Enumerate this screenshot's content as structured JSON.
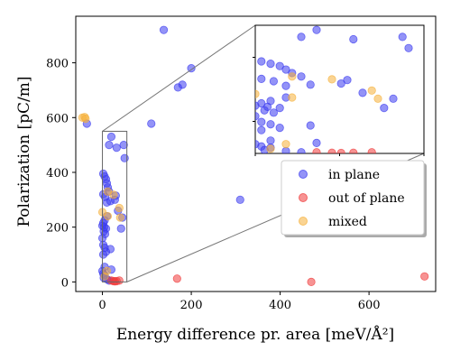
{
  "chart_data": {
    "type": "scatter",
    "xlabel": "Energy difference pr. area [meV/Å²]",
    "ylabel": "Polarization [pC/m]",
    "xlim": [
      -60,
      750
    ],
    "ylim": [
      -35,
      970
    ],
    "xticks": [
      0,
      200,
      400,
      600
    ],
    "yticks": [
      0,
      200,
      400,
      600,
      800
    ],
    "grid": false,
    "legend_position": "right-middle",
    "series": [
      {
        "name": "in plane",
        "color": "#3b3bf0",
        "points": [
          [
            138,
            920
          ],
          [
            200,
            780
          ],
          [
            180,
            720
          ],
          [
            170,
            710
          ],
          [
            110,
            578
          ],
          [
            310,
            300
          ],
          [
            -35,
            578
          ],
          [
            20,
            530
          ],
          [
            15,
            500
          ],
          [
            32,
            490
          ],
          [
            48,
            500
          ],
          [
            50,
            452
          ],
          [
            2,
            395
          ],
          [
            5,
            385
          ],
          [
            8,
            375
          ],
          [
            10,
            360
          ],
          [
            12,
            345
          ],
          [
            15,
            330
          ],
          [
            2,
            320
          ],
          [
            6,
            310
          ],
          [
            30,
            315
          ],
          [
            28,
            300
          ],
          [
            10,
            290
          ],
          [
            18,
            295
          ],
          [
            35,
            260
          ],
          [
            45,
            235
          ],
          [
            42,
            195
          ],
          [
            10,
            240
          ],
          [
            5,
            225
          ],
          [
            2,
            215
          ],
          [
            0,
            205
          ],
          [
            4,
            200
          ],
          [
            8,
            195
          ],
          [
            3,
            185
          ],
          [
            6,
            175
          ],
          [
            0,
            160
          ],
          [
            2,
            135
          ],
          [
            5,
            125
          ],
          [
            18,
            120
          ],
          [
            8,
            110
          ],
          [
            2,
            100
          ],
          [
            20,
            45
          ],
          [
            0,
            40
          ],
          [
            2,
            30
          ],
          [
            5,
            25
          ],
          [
            3,
            15
          ],
          [
            10,
            10
          ],
          [
            15,
            5
          ],
          [
            5,
            55
          ]
        ]
      },
      {
        "name": "out of plane",
        "color": "#f03b3b",
        "points": [
          [
            20,
            5
          ],
          [
            25,
            3
          ],
          [
            28,
            2
          ],
          [
            32,
            3
          ],
          [
            38,
            5
          ],
          [
            168,
            12
          ],
          [
            470,
            0
          ],
          [
            725,
            20
          ]
        ]
      },
      {
        "name": "mixed",
        "color": "#f5b13b",
        "points": [
          [
            -45,
            600
          ],
          [
            -40,
            602
          ],
          [
            -38,
            596
          ],
          [
            12,
            330
          ],
          [
            25,
            318
          ],
          [
            0,
            255
          ],
          [
            38,
            270
          ],
          [
            12,
            240
          ],
          [
            40,
            235
          ],
          [
            10,
            40
          ],
          [
            5,
            20
          ]
        ]
      }
    ],
    "inset": {
      "zoom_xlim": [
        0,
        55
      ],
      "zoom_ylim": [
        0,
        550
      ]
    }
  }
}
